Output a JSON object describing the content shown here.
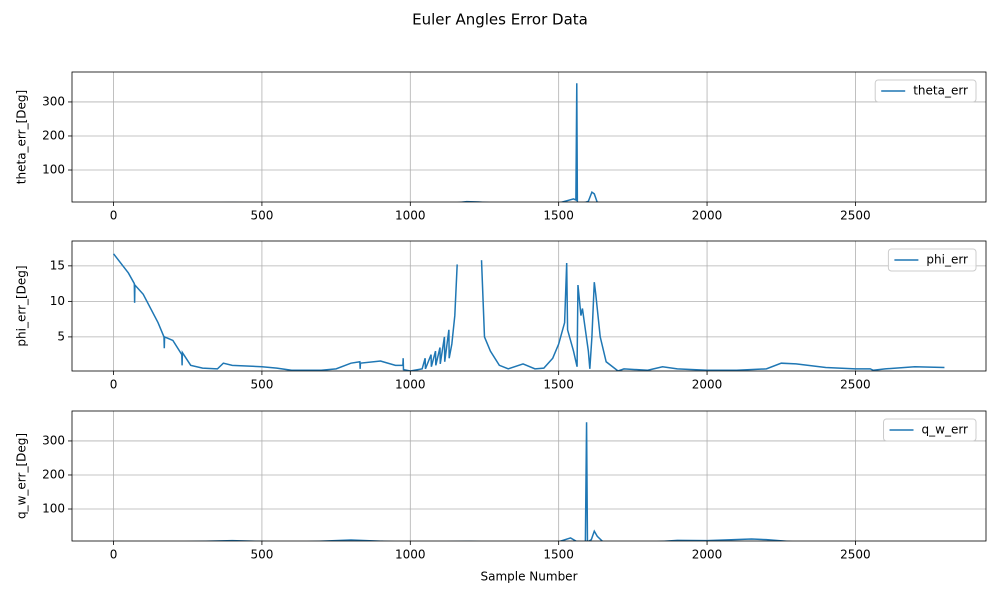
{
  "title": "Euler Angles Error Data",
  "chart_data": [
    {
      "type": "line",
      "ylabel": "theta_err_[Deg]",
      "xlim": [
        -140,
        2940
      ],
      "ylim": [
        6,
        388
      ],
      "xticks": [
        0,
        500,
        1000,
        1500,
        2000,
        2500
      ],
      "yticks": [
        100,
        200,
        300
      ],
      "grid": true,
      "legend": "upper-right",
      "series": [
        {
          "name": "theta_err",
          "color": "#1f77b4",
          "x": [
            0,
            200,
            400,
            600,
            800,
            1000,
            1150,
            1190,
            1230,
            1300,
            1500,
            1550,
            1558,
            1561,
            1563,
            1565,
            1580,
            1600,
            1612,
            1620,
            1630,
            1650,
            1800,
            2000,
            2200,
            2500,
            2800
          ],
          "values": [
            3,
            3,
            4,
            3,
            2,
            2,
            3,
            7,
            6,
            2,
            3,
            15,
            12,
            355,
            5,
            3,
            2,
            8,
            35,
            30,
            5,
            2,
            2,
            2,
            2,
            2,
            2
          ]
        }
      ]
    },
    {
      "type": "line",
      "ylabel": "phi_err_[Deg]",
      "xlim": [
        -140,
        2940
      ],
      "ylim": [
        0.2,
        18.5
      ],
      "xticks": [
        0,
        500,
        1000,
        1500,
        2000,
        2500
      ],
      "yticks": [
        5,
        10,
        15
      ],
      "grid": true,
      "legend": "upper-right",
      "series": [
        {
          "name": "phi_err",
          "color": "#1f77b4",
          "x": [
            0,
            50,
            70,
            71,
            72,
            100,
            150,
            170,
            171,
            172,
            200,
            230,
            231,
            232,
            260,
            300,
            350,
            370,
            400,
            500,
            550,
            600,
            700,
            750,
            800,
            830,
            831,
            832,
            900,
            950,
            975,
            976,
            977,
            1000,
            1040,
            1050,
            1051,
            1070,
            1071,
            1085,
            1086,
            1100,
            1101,
            1115,
            1116,
            1130,
            1131,
            1140,
            1150,
            1158,
            1200,
            1240,
            1250,
            1270,
            1300,
            1330,
            1380,
            1420,
            1450,
            1480,
            1500,
            1520,
            1527,
            1530,
            1550,
            1562,
            1565,
            1575,
            1580,
            1590,
            1600,
            1605,
            1612,
            1620,
            1625,
            1640,
            1660,
            1700,
            1720,
            1800,
            1850,
            1900,
            2000,
            2100,
            2200,
            2250,
            2300,
            2400,
            2500,
            2550,
            2560,
            2600,
            2700,
            2800
          ],
          "values": [
            16.7,
            14,
            12.5,
            9.8,
            12.3,
            11,
            7,
            5,
            3.4,
            5,
            4.5,
            2.5,
            1,
            2.8,
            1,
            0.6,
            0.5,
            1.3,
            1,
            0.8,
            0.6,
            0.3,
            0.3,
            0.5,
            1.3,
            1.5,
            0.5,
            1.3,
            1.6,
            1.0,
            1.0,
            2.0,
            0.4,
            0.2,
            0.5,
            2,
            0.5,
            2.5,
            0.8,
            3,
            1,
            3.5,
            1.2,
            5,
            1.5,
            6,
            2,
            4,
            8,
            15.2,
            null,
            15.8,
            5,
            3,
            1,
            0.5,
            1.2,
            0.5,
            0.6,
            2,
            4,
            7,
            15.4,
            6,
            3,
            0.8,
            12.3,
            8,
            9,
            6,
            3,
            0.5,
            5,
            12.7,
            11,
            5,
            1.5,
            0.2,
            0.5,
            0.3,
            0.8,
            0.5,
            0.3,
            0.3,
            0.5,
            1.3,
            1.2,
            0.7,
            0.5,
            0.5,
            0.3,
            0.5,
            0.8,
            0.7
          ]
        }
      ]
    },
    {
      "type": "line",
      "ylabel": "q_w_err_[Deg]",
      "xlabel": "Sample Number",
      "xlim": [
        -140,
        2940
      ],
      "ylim": [
        6,
        388
      ],
      "xticks": [
        0,
        500,
        1000,
        1500,
        2000,
        2500
      ],
      "yticks": [
        100,
        200,
        300
      ],
      "grid": true,
      "legend": "upper-right",
      "series": [
        {
          "name": "q_w_err",
          "color": "#1f77b4",
          "x": [
            0,
            200,
            400,
            600,
            800,
            1000,
            1200,
            1300,
            1500,
            1540,
            1560,
            1590,
            1594,
            1597,
            1610,
            1620,
            1630,
            1650,
            1800,
            1900,
            2000,
            2150,
            2200,
            2300,
            2500,
            2800
          ],
          "values": [
            4,
            3,
            7,
            2,
            9,
            2,
            5,
            2,
            4,
            15,
            5,
            3,
            355,
            3,
            10,
            35,
            20,
            3,
            2,
            8,
            7,
            12,
            10,
            3,
            2,
            2
          ]
        }
      ]
    }
  ]
}
